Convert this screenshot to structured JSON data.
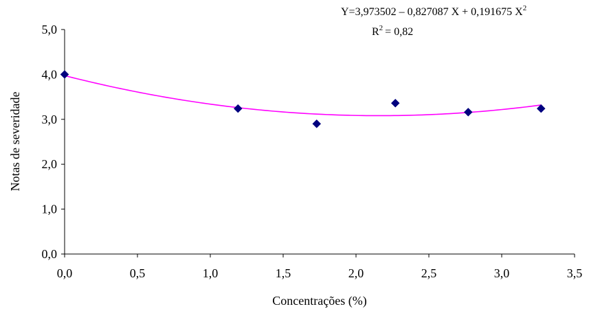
{
  "chart_data": {
    "type": "scatter",
    "xlabel": "Concentrações (%)",
    "ylabel": "Notas de severidade",
    "xlim": [
      0,
      3.5
    ],
    "ylim": [
      0,
      5
    ],
    "x_ticks": [
      "0,0",
      "0,5",
      "1,0",
      "1,5",
      "2,0",
      "2,5",
      "3,0",
      "3,5"
    ],
    "y_ticks": [
      "0,0",
      "1,0",
      "2,0",
      "3,0",
      "4,0",
      "5,0"
    ],
    "x_tick_values": [
      0,
      0.5,
      1,
      1.5,
      2,
      2.5,
      3,
      3.5
    ],
    "y_tick_values": [
      0,
      1,
      2,
      3,
      4,
      5
    ],
    "grid": false,
    "series": [
      {
        "points": [
          {
            "x": 0.0,
            "y": 4.0
          },
          {
            "x": 1.19,
            "y": 3.24
          },
          {
            "x": 1.73,
            "y": 2.9
          },
          {
            "x": 2.27,
            "y": 3.36
          },
          {
            "x": 2.77,
            "y": 3.16
          },
          {
            "x": 3.27,
            "y": 3.24
          }
        ],
        "marker": "diamond",
        "color": "#00007F"
      }
    ],
    "trendline": {
      "type": "polynomial",
      "coefficients": [
        3.973502,
        -0.827087,
        0.191675
      ],
      "color": "#FF00FF"
    },
    "annotation": {
      "equation_main": "Y=3,973502 – 0,827087 X + 0,191675 X",
      "equation_sup": "2",
      "r2_prefix": "R",
      "r2_sup": "2",
      "r2_value": "=  0,82"
    }
  }
}
